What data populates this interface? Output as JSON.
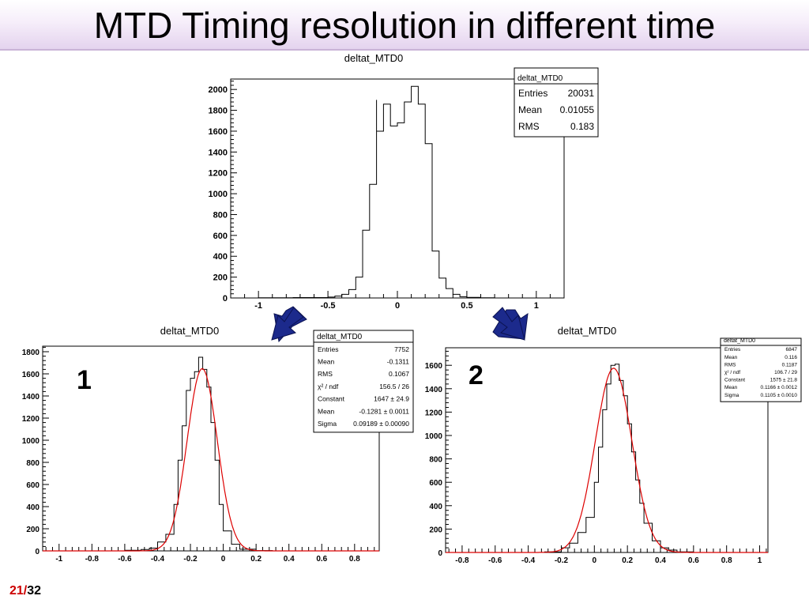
{
  "slide": {
    "title": "MTD Timing resolution in different time",
    "page_current": "21",
    "page_separator": "/",
    "page_total": "32"
  },
  "colors": {
    "histogram": "#000000",
    "fit": "#dd0000",
    "arrow": "#1c2a8c",
    "page_number": "#cc0000"
  },
  "chart_data": [
    {
      "id": "top",
      "type": "bar",
      "title": "deltat_MTD0",
      "xlim": [
        -1.2,
        1.2
      ],
      "ylim": [
        0,
        2100
      ],
      "xticks": [
        -1,
        -0.5,
        0,
        0.5,
        1
      ],
      "xticklabels": [
        "-1",
        "-0.5",
        "0",
        "0.5",
        "1"
      ],
      "yticks": [
        0,
        200,
        400,
        600,
        800,
        1000,
        1200,
        1400,
        1600,
        1800,
        2000
      ],
      "yticklabels": [
        "0",
        "200",
        "400",
        "600",
        "800",
        "1000",
        "1200",
        "1400",
        "1600",
        "1800",
        "2000"
      ],
      "bin_edges_start": -0.2,
      "bin_width": 0.05,
      "values": [
        1900,
        1860,
        1650,
        1680,
        1880,
        2030,
        1860
      ],
      "tail_left": [
        [
          -1.0,
          2
        ],
        [
          -0.75,
          4
        ],
        [
          -0.5,
          8
        ],
        [
          -0.45,
          18
        ],
        [
          -0.4,
          35
        ],
        [
          -0.35,
          80
        ],
        [
          -0.3,
          200
        ],
        [
          -0.25,
          650
        ],
        [
          -0.2,
          1090
        ],
        [
          -0.15,
          1600
        ]
      ],
      "tail_right": [
        [
          0.15,
          1860
        ],
        [
          0.2,
          1480
        ],
        [
          0.25,
          450
        ],
        [
          0.3,
          190
        ],
        [
          0.35,
          90
        ],
        [
          0.4,
          35
        ],
        [
          0.45,
          12
        ],
        [
          0.5,
          5
        ],
        [
          0.6,
          2
        ]
      ],
      "stats": {
        "header": "deltat_MTD0",
        "rows": [
          {
            "label": "Entries",
            "value": "20031"
          },
          {
            "label": "Mean",
            "value": "0.01055"
          },
          {
            "label": "RMS",
            "value": "0.183"
          }
        ]
      }
    },
    {
      "id": "left",
      "type": "bar",
      "title": "deltat_MTD0",
      "label": "1",
      "xlim": [
        -1.1,
        0.95
      ],
      "ylim": [
        0,
        1850
      ],
      "xticks": [
        -1,
        -0.8,
        -0.6,
        -0.4,
        -0.2,
        0,
        0.2,
        0.4,
        0.6,
        0.8
      ],
      "xticklabels": [
        "-1",
        "-0.8",
        "-0.6",
        "-0.4",
        "-0.2",
        "0",
        "0.2",
        "0.4",
        "0.6",
        "0.8"
      ],
      "yticks": [
        0,
        200,
        400,
        600,
        800,
        1000,
        1200,
        1400,
        1600,
        1800
      ],
      "yticklabels": [
        "0",
        "200",
        "400",
        "600",
        "800",
        "1000",
        "1200",
        "1400",
        "1600",
        "1800"
      ],
      "bins": [
        [
          -0.6,
          5
        ],
        [
          -0.5,
          12
        ],
        [
          -0.45,
          25
        ],
        [
          -0.4,
          80
        ],
        [
          -0.35,
          150
        ],
        [
          -0.3,
          420
        ],
        [
          -0.275,
          820
        ],
        [
          -0.25,
          1130
        ],
        [
          -0.225,
          1450
        ],
        [
          -0.2,
          1560
        ],
        [
          -0.175,
          1620
        ],
        [
          -0.15,
          1750
        ],
        [
          -0.125,
          1640
        ],
        [
          -0.1,
          1480
        ],
        [
          -0.075,
          1160
        ],
        [
          -0.05,
          820
        ],
        [
          -0.025,
          420
        ],
        [
          0.0,
          180
        ],
        [
          0.05,
          60
        ],
        [
          0.1,
          15
        ],
        [
          0.2,
          3
        ],
        [
          0.3,
          0
        ]
      ],
      "fit": {
        "constant": 1647,
        "mean": -0.1281,
        "sigma": 0.09189
      },
      "stats": {
        "header": "deltat_MTD0",
        "rows": [
          {
            "label": "Entries",
            "value": "7752"
          },
          {
            "label": "Mean",
            "value": "-0.1311"
          },
          {
            "label": "RMS",
            "value": "0.1067"
          },
          {
            "label": "χ² / ndf",
            "value": "156.5 / 26"
          },
          {
            "label": "Constant",
            "value": "1647 ± 24.9"
          },
          {
            "label": "Mean",
            "value": "-0.1281 ± 0.0011"
          },
          {
            "label": "Sigma",
            "value": "0.09189 ± 0.00090"
          }
        ]
      }
    },
    {
      "id": "right",
      "type": "bar",
      "title": "deltat_MTD0",
      "label": "2",
      "xlim": [
        -0.9,
        1.05
      ],
      "ylim": [
        0,
        1750
      ],
      "xticks": [
        -0.8,
        -0.6,
        -0.4,
        -0.2,
        0,
        0.2,
        0.4,
        0.6,
        0.8,
        1
      ],
      "xticklabels": [
        "-0.8",
        "-0.6",
        "-0.4",
        "-0.2",
        "0",
        "0.2",
        "0.4",
        "0.6",
        "0.8",
        "1"
      ],
      "yticks": [
        0,
        200,
        400,
        600,
        800,
        1000,
        1200,
        1400,
        1600
      ],
      "yticklabels": [
        "0",
        "200",
        "400",
        "600",
        "800",
        "1000",
        "1200",
        "1400",
        "1600"
      ],
      "bins": [
        [
          -0.3,
          5
        ],
        [
          -0.2,
          40
        ],
        [
          -0.15,
          80
        ],
        [
          -0.1,
          170
        ],
        [
          -0.05,
          300
        ],
        [
          0.0,
          600
        ],
        [
          0.025,
          900
        ],
        [
          0.05,
          1220
        ],
        [
          0.075,
          1440
        ],
        [
          0.1,
          1600
        ],
        [
          0.125,
          1610
        ],
        [
          0.15,
          1470
        ],
        [
          0.175,
          1340
        ],
        [
          0.2,
          1100
        ],
        [
          0.225,
          860
        ],
        [
          0.25,
          620
        ],
        [
          0.275,
          420
        ],
        [
          0.3,
          250
        ],
        [
          0.35,
          100
        ],
        [
          0.4,
          40
        ],
        [
          0.45,
          20
        ],
        [
          0.5,
          5
        ],
        [
          0.6,
          0
        ]
      ],
      "fit": {
        "constant": 1575,
        "mean": 0.1166,
        "sigma": 0.1105
      },
      "stats": {
        "header": "deltat_MTD0",
        "rows": [
          {
            "label": "Entries",
            "value": "6847"
          },
          {
            "label": "Mean",
            "value": "0.116"
          },
          {
            "label": "RMS",
            "value": "0.1187"
          },
          {
            "label": "χ² / ndf",
            "value": "106.7 / 29"
          },
          {
            "label": "Constant",
            "value": "1575 ± 21.8"
          },
          {
            "label": "Mean",
            "value": "0.1166 ± 0.0012"
          },
          {
            "label": "Sigma",
            "value": "0.1105 ± 0.0010"
          }
        ]
      }
    }
  ]
}
